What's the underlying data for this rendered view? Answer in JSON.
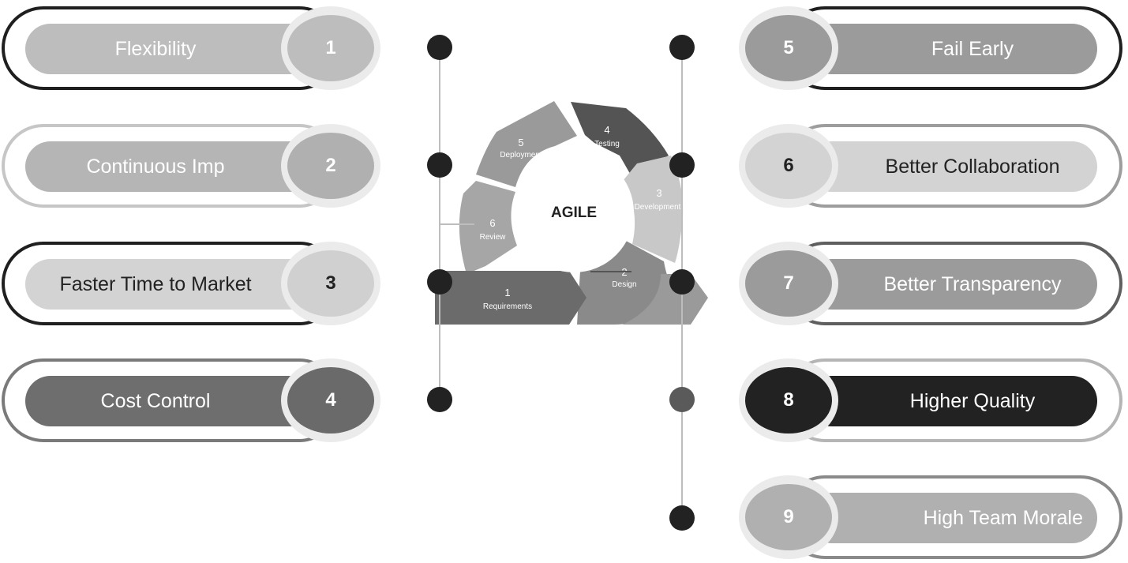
{
  "benefits_left": [
    {
      "number": "1",
      "label": "Flexibility"
    },
    {
      "number": "2",
      "label": "Continuous Imp"
    },
    {
      "number": "3",
      "label": "Faster Time to Market"
    },
    {
      "number": "4",
      "label": "Cost Control"
    }
  ],
  "benefits_right": [
    {
      "number": "5",
      "label": "Fail Early"
    },
    {
      "number": "6",
      "label": "Better Collaboration"
    },
    {
      "number": "7",
      "label": "Better Transparency"
    },
    {
      "number": "8",
      "label": "Higher Quality"
    },
    {
      "number": "9",
      "label": "High Team Morale"
    }
  ],
  "cycle": {
    "center_label": "AGILE",
    "stages": [
      {
        "number": "1",
        "name": "Requirements"
      },
      {
        "number": "2",
        "name": "Design"
      },
      {
        "number": "3",
        "name": "Development"
      },
      {
        "number": "4",
        "name": "Testing"
      },
      {
        "number": "5",
        "name": "Deployment"
      },
      {
        "number": "6",
        "name": "Review"
      }
    ]
  },
  "colors": {
    "black": "#1f1f1f",
    "dark_gray": "#6e6e6e",
    "mid_gray": "#9b9b9b",
    "light_gray": "#b9b9b9",
    "pale_gray": "#cfcfcf"
  }
}
